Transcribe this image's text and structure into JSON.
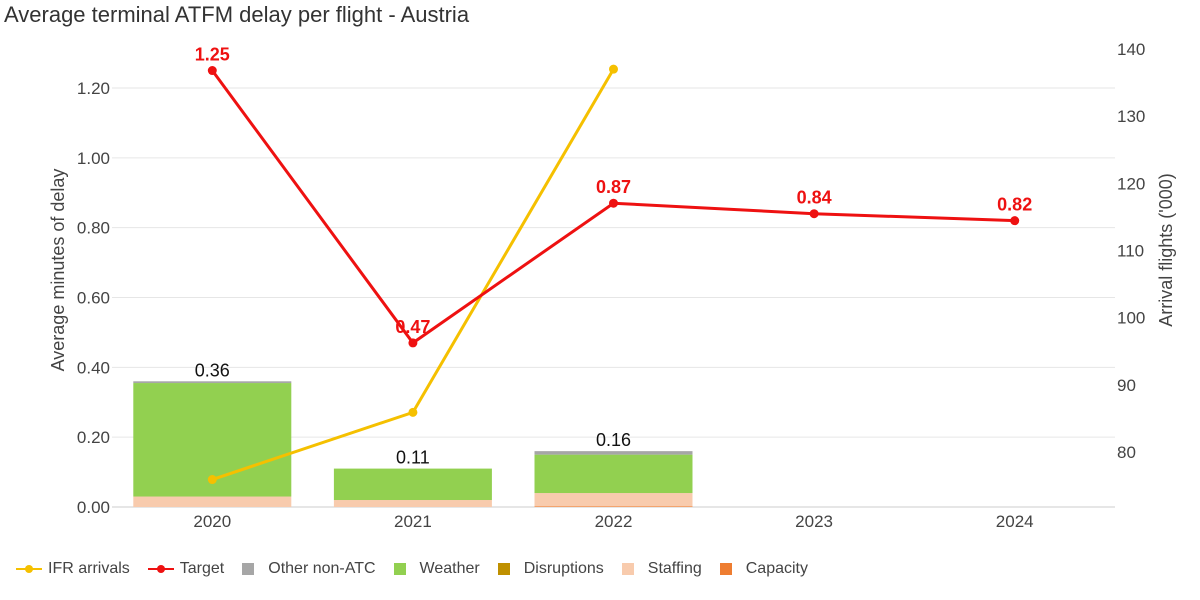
{
  "chart_data": {
    "type": "bar",
    "title": "Average terminal ATFM delay per flight - Austria",
    "ylabel": "Average minutes of delay",
    "y2label": "Arrival flights ('000)",
    "ylim": [
      0,
      1.4
    ],
    "y2lim": [
      70,
      140
    ],
    "yticks": [
      "0.00",
      "0.20",
      "0.40",
      "0.60",
      "0.80",
      "1.00",
      "1.20"
    ],
    "y2ticks": [
      "80",
      "90",
      "100",
      "110",
      "120",
      "130",
      "140"
    ],
    "categories": [
      "2020",
      "2021",
      "2022",
      "2023",
      "2024"
    ],
    "stacked_series": [
      {
        "name": "Capacity",
        "color": "#ee7d31",
        "values": [
          0.0,
          0.0,
          0.002,
          null,
          null
        ]
      },
      {
        "name": "Staffing",
        "color": "#f8cbad",
        "values": [
          0.03,
          0.02,
          0.038,
          null,
          null
        ]
      },
      {
        "name": "Disruptions",
        "color": "#bf9000",
        "values": [
          0.0,
          0.0,
          0.0,
          null,
          null
        ]
      },
      {
        "name": "Weather",
        "color": "#92d050",
        "values": [
          0.325,
          0.09,
          0.11,
          null,
          null
        ]
      },
      {
        "name": "Other non-ATC",
        "color": "#a6a6a6",
        "values": [
          0.005,
          0.0,
          0.01,
          null,
          null
        ]
      }
    ],
    "bar_totals": [
      "0.36",
      "0.11",
      "0.16",
      null,
      null
    ],
    "line_series": [
      {
        "name": "IFR arrivals",
        "color": "#f5c000",
        "axis": "right",
        "values": [
          75.9,
          85.9,
          137.0,
          null,
          null
        ]
      },
      {
        "name": "Target",
        "color": "#ee1111",
        "axis": "left",
        "values": [
          1.25,
          0.47,
          0.87,
          0.84,
          0.82
        ],
        "labels": [
          "1.25",
          "0.47",
          "0.87",
          "0.84",
          "0.82"
        ]
      }
    ],
    "grid": true,
    "legend_position": "bottom-left",
    "legend": [
      {
        "label": "IFR arrivals",
        "color": "#f5c000",
        "kind": "line"
      },
      {
        "label": "Target",
        "color": "#ee1111",
        "kind": "line"
      },
      {
        "label": "Other non-ATC",
        "color": "#a6a6a6",
        "kind": "box"
      },
      {
        "label": "Weather",
        "color": "#92d050",
        "kind": "box"
      },
      {
        "label": "Disruptions",
        "color": "#bf9000",
        "kind": "box"
      },
      {
        "label": "Staffing",
        "color": "#f8cbad",
        "kind": "box"
      },
      {
        "label": "Capacity",
        "color": "#ee7d31",
        "kind": "box"
      }
    ]
  }
}
